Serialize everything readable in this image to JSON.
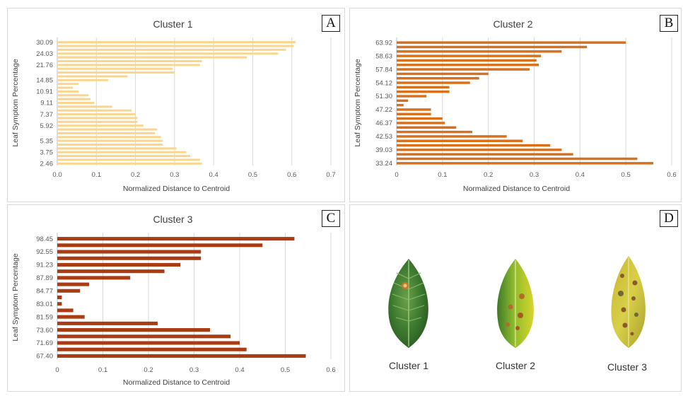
{
  "panels": [
    {
      "letter": "A"
    },
    {
      "letter": "B"
    },
    {
      "letter": "C"
    },
    {
      "letter": "D"
    }
  ],
  "chart_data": [
    {
      "type": "bar",
      "orientation": "horizontal",
      "title": "Cluster 1",
      "xlabel": "Normalized Distance to Centroid",
      "ylabel": "Leaf Symptom Percentage",
      "color": "#fbd58c",
      "xlim": [
        0,
        0.7
      ],
      "xticks": [
        "0.0",
        "0.1",
        "0.2",
        "0.3",
        "0.4",
        "0.5",
        "0.6",
        "0.7"
      ],
      "grid": true,
      "ytick_labels": [
        "2.46",
        "3.75",
        "5.35",
        "5.92",
        "7.37",
        "9.11",
        "10.91",
        "14.85",
        "21.76",
        "24.03",
        "30.09"
      ],
      "values": [
        0.37,
        0.365,
        0.34,
        0.33,
        0.305,
        0.27,
        0.27,
        0.265,
        0.25,
        0.255,
        0.22,
        0.205,
        0.205,
        0.2,
        0.19,
        0.14,
        0.095,
        0.085,
        0.08,
        0.055,
        0.04,
        0.055,
        0.13,
        0.18,
        0.3,
        0.295,
        0.365,
        0.37,
        0.485,
        0.565,
        0.585,
        0.605,
        0.61
      ]
    },
    {
      "type": "bar",
      "orientation": "horizontal",
      "title": "Cluster 2",
      "xlabel": "Normalized Distance to Centroid",
      "ylabel": "Leaf Symptom Percentage",
      "color": "#d8711d",
      "xlim": [
        0,
        0.6
      ],
      "xticks": [
        "0",
        "0.1",
        "0.2",
        "0.3",
        "0.4",
        "0.5",
        "0.6"
      ],
      "grid": true,
      "ytick_labels": [
        "33.24",
        "39.03",
        "42.53",
        "46.37",
        "47.22",
        "51.30",
        "54.12",
        "57.84",
        "58.63",
        "63.92"
      ],
      "values": [
        0.56,
        0.525,
        0.385,
        0.36,
        0.335,
        0.275,
        0.24,
        0.165,
        0.13,
        0.105,
        0.1,
        0.075,
        0.075,
        0.015,
        0.025,
        0.065,
        0.115,
        0.115,
        0.16,
        0.18,
        0.2,
        0.29,
        0.31,
        0.305,
        0.315,
        0.36,
        0.415,
        0.5
      ]
    },
    {
      "type": "bar",
      "orientation": "horizontal",
      "title": "Cluster 3",
      "xlabel": "Normalized Distance to Centroid",
      "ylabel": "Leaf Symptom Percentage",
      "color": "#a93c12",
      "xlim": [
        0,
        0.6
      ],
      "xticks": [
        "0",
        "0.1",
        "0.2",
        "0.3",
        "0.4",
        "0.5",
        "0.6"
      ],
      "grid": true,
      "ytick_labels": [
        "67.40",
        "71.69",
        "73.60",
        "81.59",
        "83.01",
        "84.77",
        "87.89",
        "91.23",
        "92.55",
        "98.45"
      ],
      "values": [
        0.545,
        0.415,
        0.4,
        0.38,
        0.335,
        0.22,
        0.06,
        0.035,
        0.01,
        0.01,
        0.05,
        0.07,
        0.16,
        0.235,
        0.27,
        0.315,
        0.315,
        0.45,
        0.52
      ]
    }
  ],
  "leaves": [
    {
      "label": "Cluster 1"
    },
    {
      "label": "Cluster 2"
    },
    {
      "label": "Cluster 3"
    }
  ]
}
